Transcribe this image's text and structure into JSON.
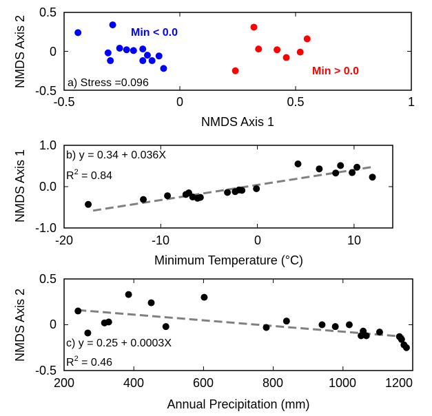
{
  "chart_data": [
    {
      "type": "scatter",
      "panel": "a",
      "xlabel": "NMDS Axis 1",
      "ylabel": "NMDS Axis 2",
      "xlim": [
        -0.5,
        1
      ],
      "ylim": [
        -0.5,
        0.5
      ],
      "xticks": [
        "-0.5",
        "0",
        "0.5",
        "1"
      ],
      "yticks": [
        "0.5",
        "0",
        "-0.5"
      ],
      "grid": false,
      "annotations": [
        "a) Stress =0.096",
        "Min < 0.0",
        "Min > 0.0"
      ],
      "series": [
        {
          "name": "Min < 0.0",
          "color": "#0000ff",
          "points": [
            [
              -0.44,
              0.24
            ],
            [
              -0.29,
              0.34
            ],
            [
              -0.31,
              -0.02
            ],
            [
              -0.3,
              -0.12
            ],
            [
              -0.26,
              0.04
            ],
            [
              -0.23,
              0.02
            ],
            [
              -0.2,
              0.01
            ],
            [
              -0.16,
              -0.12
            ],
            [
              -0.16,
              0.03
            ],
            [
              -0.14,
              -0.05
            ],
            [
              -0.12,
              -0.12
            ],
            [
              -0.09,
              -0.06
            ],
            [
              -0.07,
              -0.22
            ]
          ]
        },
        {
          "name": "Min > 0.0",
          "color": "#ff0000",
          "points": [
            [
              0.24,
              -0.25
            ],
            [
              0.32,
              0.31
            ],
            [
              0.34,
              0.03
            ],
            [
              0.42,
              0.02
            ],
            [
              0.46,
              -0.08
            ],
            [
              0.52,
              -0.01
            ],
            [
              0.55,
              0.16
            ]
          ]
        }
      ]
    },
    {
      "type": "scatter",
      "panel": "b",
      "xlabel": "Minimum Temperature (°C)",
      "ylabel": "NMDS Axis 1",
      "xlim": [
        -20,
        14
      ],
      "ylim": [
        -1.0,
        1.0
      ],
      "xticks": [
        "-20",
        "-10",
        "0",
        "10"
      ],
      "yticks": [
        "1.0",
        "0.0",
        "-1.0"
      ],
      "grid": false,
      "equation": "b) y = 0.34 + 0.036X",
      "r2_prefix": "R",
      "r2_exp": "2",
      "r2_value": " = 0.84",
      "fit_line": {
        "x": [
          -17,
          12
        ],
        "y": [
          -0.58,
          0.48
        ]
      },
      "series": [
        {
          "color": "#000000",
          "points": [
            [
              -17.5,
              -0.43
            ],
            [
              -11.8,
              -0.31
            ],
            [
              -9.3,
              -0.22
            ],
            [
              -7.4,
              -0.19
            ],
            [
              -7.1,
              -0.15
            ],
            [
              -6.7,
              -0.25
            ],
            [
              -6.2,
              -0.28
            ],
            [
              -5.9,
              -0.26
            ],
            [
              -3.1,
              -0.14
            ],
            [
              -2.3,
              -0.12
            ],
            [
              -1.9,
              -0.08
            ],
            [
              -1.6,
              -0.09
            ],
            [
              -0.1,
              -0.05
            ],
            [
              4.2,
              0.55
            ],
            [
              6.4,
              0.43
            ],
            [
              8.1,
              0.33
            ],
            [
              8.6,
              0.51
            ],
            [
              9.8,
              0.34
            ],
            [
              10.3,
              0.47
            ],
            [
              11.9,
              0.23
            ]
          ]
        }
      ]
    },
    {
      "type": "scatter",
      "panel": "c",
      "xlabel": "Annual Precipitation (mm)",
      "ylabel": "NMDS Axis 2",
      "xlim": [
        200,
        1200
      ],
      "ylim": [
        -0.5,
        0.5
      ],
      "xticks": [
        "200",
        "400",
        "600",
        "800",
        "1000",
        "1200"
      ],
      "yticks": [
        "0.5",
        "0",
        "-0.5"
      ],
      "grid": false,
      "equation": "c) y = 0.25 + 0.0003X",
      "r2_prefix": "R",
      "r2_exp": "2",
      "r2_value": " = 0.46",
      "fit_line": {
        "x": [
          240,
          1175
        ],
        "y": [
          0.16,
          -0.13
        ]
      },
      "series": [
        {
          "color": "#000000",
          "points": [
            [
              240,
              0.15
            ],
            [
              268,
              -0.09
            ],
            [
              316,
              0.02
            ],
            [
              328,
              0.03
            ],
            [
              385,
              0.33
            ],
            [
              450,
              0.24
            ],
            [
              492,
              -0.02
            ],
            [
              602,
              0.3
            ],
            [
              780,
              -0.03
            ],
            [
              838,
              0.04
            ],
            [
              940,
              0.0
            ],
            [
              978,
              -0.02
            ],
            [
              1018,
              0.0
            ],
            [
              1052,
              -0.12
            ],
            [
              1058,
              -0.07
            ],
            [
              1067,
              -0.12
            ],
            [
              1105,
              -0.08
            ],
            [
              1162,
              -0.13
            ],
            [
              1168,
              -0.16
            ],
            [
              1175,
              -0.22
            ],
            [
              1182,
              -0.25
            ]
          ]
        }
      ]
    }
  ]
}
